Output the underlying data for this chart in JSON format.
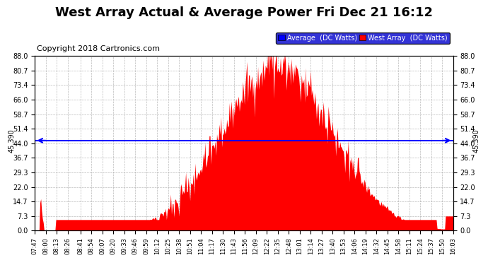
{
  "title": "West Array Actual & Average Power Fri Dec 21 16:12",
  "copyright": "Copyright 2018 Cartronics.com",
  "legend_labels": [
    "Average  (DC Watts)",
    "West Array  (DC Watts)"
  ],
  "legend_colors": [
    "#0000ff",
    "#ff0000"
  ],
  "average_value": 45.39,
  "y_tick_labels": [
    "0.0",
    "7.3",
    "14.7",
    "22.0",
    "29.3",
    "36.7",
    "44.0",
    "51.4",
    "58.7",
    "66.0",
    "73.4",
    "80.7",
    "88.0"
  ],
  "y_tick_values": [
    0.0,
    7.3,
    14.7,
    22.0,
    29.3,
    36.7,
    44.0,
    51.4,
    58.7,
    66.0,
    73.4,
    80.7,
    88.0
  ],
  "ymax": 88.0,
  "ymin": 0.0,
  "background_color": "#ffffff",
  "plot_bg_color": "#ffffff",
  "grid_color": "#aaaaaa",
  "fill_color": "#ff0000",
  "avg_line_color": "#0000ff",
  "title_fontsize": 13,
  "copyright_fontsize": 8,
  "x_tick_labels": [
    "07:47",
    "08:00",
    "08:13",
    "08:26",
    "08:41",
    "08:54",
    "09:07",
    "09:20",
    "09:33",
    "09:46",
    "09:59",
    "10:12",
    "10:25",
    "10:38",
    "10:51",
    "11:04",
    "11:17",
    "11:30",
    "11:43",
    "11:56",
    "12:09",
    "12:22",
    "12:35",
    "12:48",
    "13:01",
    "13:14",
    "13:27",
    "13:40",
    "13:53",
    "14:06",
    "14:19",
    "14:32",
    "14:45",
    "14:58",
    "15:11",
    "15:24",
    "15:37",
    "15:50",
    "16:03"
  ]
}
